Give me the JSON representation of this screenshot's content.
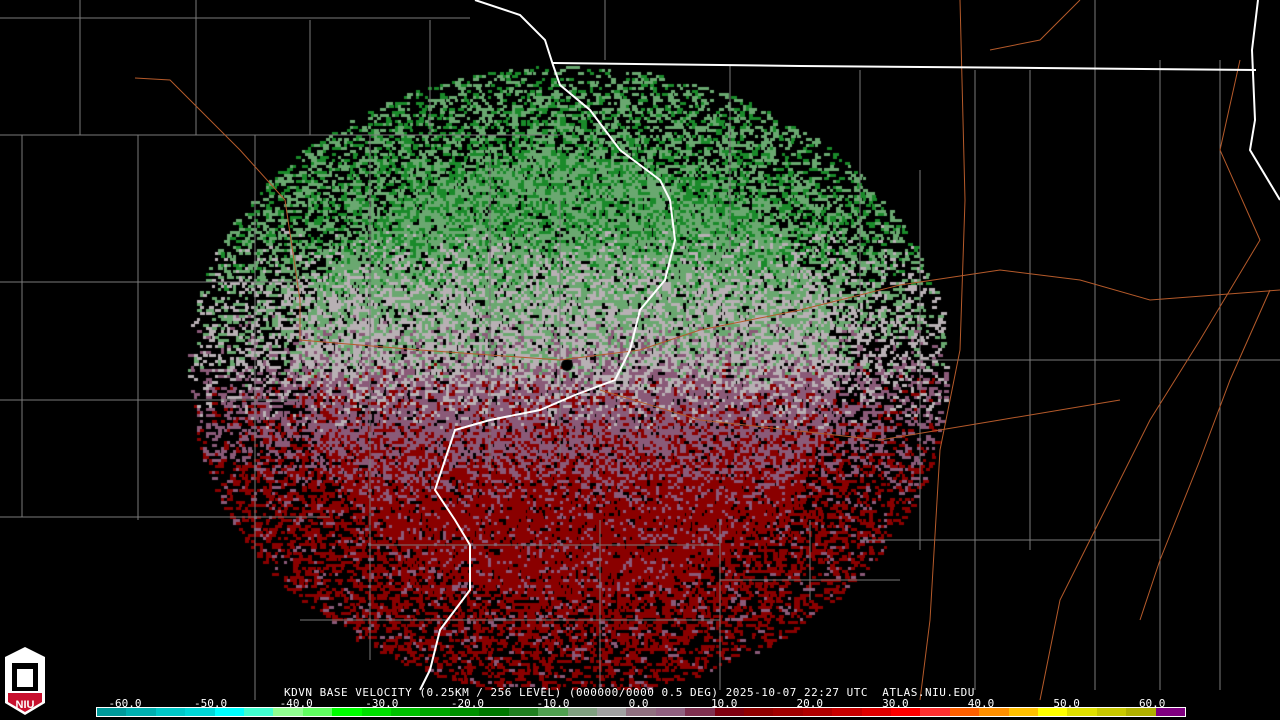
{
  "title": "KDVN BASE VELOCITY (0.25KM / 256 LEVEL) (000000/0000 0.5 DEG) 2025-10-07 22:27 UTC  ATLAS.NIU.EDU",
  "logo_text": "NIU",
  "colorbar": {
    "ticks": [
      "-60.0",
      "-50.0",
      "-40.0",
      "-30.0",
      "-20.0",
      "-10.0",
      "0.0",
      "10.0",
      "20.0",
      "30.0",
      "40.0",
      "50.0",
      "60.0"
    ],
    "colors": [
      "#009a9a",
      "#00b0b0",
      "#00c8c8",
      "#00d8d8",
      "#00ffff",
      "#40ffd0",
      "#90ff90",
      "#60ff60",
      "#00ff00",
      "#00e000",
      "#00c000",
      "#00a800",
      "#009000",
      "#007800",
      "#208020",
      "#50a050",
      "#80a080",
      "#a0a0a0",
      "#907080",
      "#906080",
      "#803050",
      "#800010",
      "#900000",
      "#a00000",
      "#b00000",
      "#c80000",
      "#e00000",
      "#ff0000",
      "#ff3030",
      "#ff6000",
      "#ff9000",
      "#ffc000",
      "#ffff00",
      "#e0e000",
      "#c8c800",
      "#b0b000",
      "#800080"
    ]
  },
  "radar_colors": {
    "inbound": "#6aa870",
    "inbound_strong": "#1a8a2a",
    "near_zero": "#b8b0b4",
    "outbound": "#8a5a78",
    "outbound_strong": "#8a0000"
  }
}
